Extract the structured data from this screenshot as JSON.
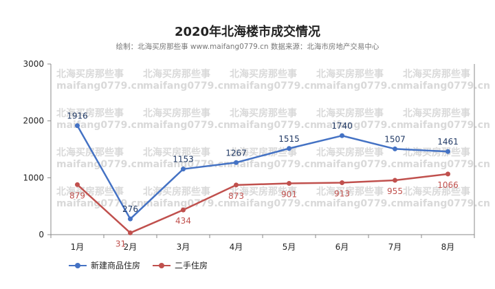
{
  "title": "2020年北海楼市成交情况",
  "subtitle": "绘制：北海买房那些事 www.maifang0779.cn 数据来源：北海市房地产交易中心",
  "watermark": {
    "line1": "北海买房那些事",
    "line2": "maifang0779.cn"
  },
  "colors": {
    "series1": "#4472c4",
    "series2": "#c0504d",
    "axis": "#888888",
    "grid": "#e6e6e6"
  },
  "chart_data": {
    "type": "line",
    "categories": [
      "1月",
      "2月",
      "3月",
      "4月",
      "5月",
      "6月",
      "7月",
      "8月"
    ],
    "ylim": [
      0,
      3000
    ],
    "yticks": [
      0,
      1000,
      2000,
      3000
    ],
    "grid": false,
    "legend_position": "bottom-left",
    "series": [
      {
        "name": "新建商品住房",
        "values": [
          1916,
          276,
          1153,
          1267,
          1515,
          1740,
          1507,
          1461
        ],
        "label_position": "above"
      },
      {
        "name": "二手住房",
        "values": [
          879,
          31,
          434,
          873,
          901,
          913,
          955,
          1066
        ],
        "label_position": "below"
      }
    ]
  }
}
